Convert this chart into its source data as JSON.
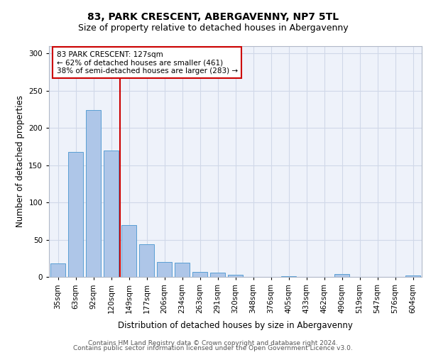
{
  "title": "83, PARK CRESCENT, ABERGAVENNY, NP7 5TL",
  "subtitle": "Size of property relative to detached houses in Abergavenny",
  "xlabel": "Distribution of detached houses by size in Abergavenny",
  "ylabel": "Number of detached properties",
  "categories": [
    "35sqm",
    "63sqm",
    "92sqm",
    "120sqm",
    "149sqm",
    "177sqm",
    "206sqm",
    "234sqm",
    "263sqm",
    "291sqm",
    "320sqm",
    "348sqm",
    "376sqm",
    "405sqm",
    "433sqm",
    "462sqm",
    "490sqm",
    "519sqm",
    "547sqm",
    "576sqm",
    "604sqm"
  ],
  "values": [
    18,
    168,
    224,
    170,
    70,
    44,
    20,
    19,
    7,
    6,
    3,
    0,
    0,
    1,
    0,
    0,
    4,
    0,
    0,
    0,
    2
  ],
  "bar_color": "#aec6e8",
  "bar_edge_color": "#5a9fd4",
  "annotation_text": "83 PARK CRESCENT: 127sqm\n← 62% of detached houses are smaller (461)\n38% of semi-detached houses are larger (283) →",
  "annotation_box_color": "#ffffff",
  "annotation_box_edge_color": "#cc0000",
  "vline_color": "#cc0000",
  "ylim": [
    0,
    310
  ],
  "yticks": [
    0,
    50,
    100,
    150,
    200,
    250,
    300
  ],
  "grid_color": "#d0d8e8",
  "background_color": "#eef2fa",
  "footer_line1": "Contains HM Land Registry data © Crown copyright and database right 2024.",
  "footer_line2": "Contains public sector information licensed under the Open Government Licence v3.0.",
  "title_fontsize": 10,
  "subtitle_fontsize": 9,
  "xlabel_fontsize": 8.5,
  "ylabel_fontsize": 8.5,
  "tick_fontsize": 7.5,
  "footer_fontsize": 6.5
}
